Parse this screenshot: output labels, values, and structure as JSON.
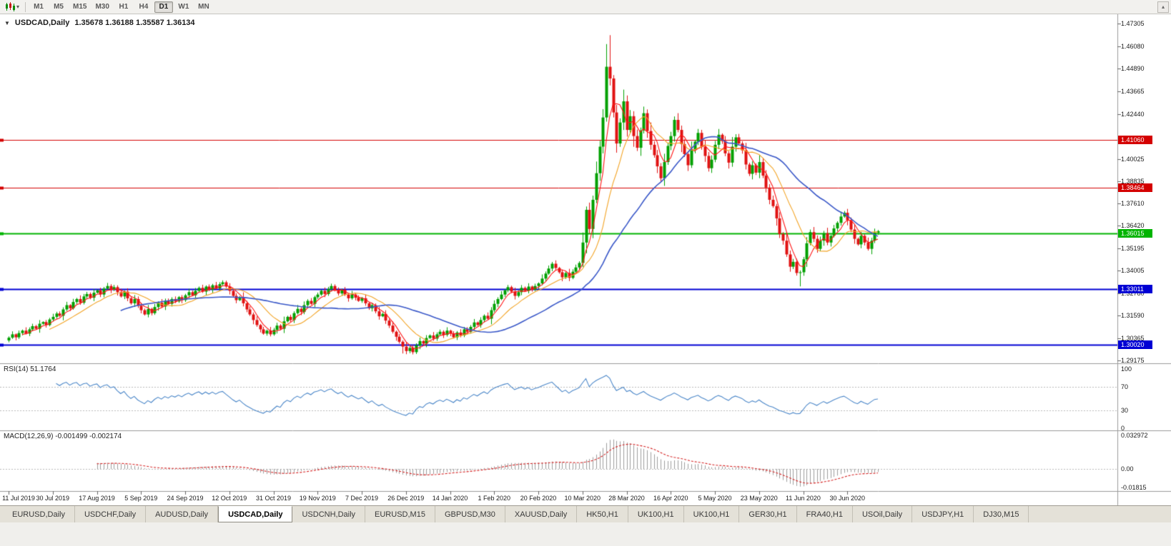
{
  "toolbar": {
    "timeframes": [
      "M1",
      "M5",
      "M15",
      "M30",
      "H1",
      "H4",
      "D1",
      "W1",
      "MN"
    ],
    "active_timeframe": "D1",
    "chart_menu_caret": "▾",
    "scroll_up_glyph": "▴"
  },
  "chart": {
    "collapse_glyph": "▼",
    "symbol_title": "USDCAD,Daily",
    "ohlc": "1.35678 1.36188 1.35587 1.36134"
  },
  "price_axis": {
    "ticks": [
      "1.47305",
      "1.46080",
      "1.44890",
      "1.43665",
      "1.42440",
      "1.40025",
      "1.38835",
      "1.37610",
      "1.36420",
      "1.35195",
      "1.34005",
      "1.32780",
      "1.31590",
      "1.30365",
      "1.29175"
    ]
  },
  "rsi": {
    "header": "RSI(14) 51.1764",
    "color": "#4a86c8",
    "levels": [
      70,
      30
    ],
    "axis_labels": [
      {
        "value": 100,
        "label": "100"
      },
      {
        "value": 70,
        "label": "70"
      },
      {
        "value": 30,
        "label": "30"
      },
      {
        "value": 0,
        "label": "0"
      }
    ]
  },
  "macd": {
    "header": "MACD(12,26,9) -0.001499 -0.002174",
    "hist_color": "#9c9c9c",
    "signal_color": "#d42020",
    "axis_labels": [
      {
        "value": 0.032972,
        "label": "0.032972"
      },
      {
        "value": 0,
        "label": "0.00"
      },
      {
        "value": -0.01815,
        "label": "-0.01815"
      }
    ]
  },
  "time_axis": {
    "labels": [
      "11 Jul 2019",
      "30 Jul 2019",
      "17 Aug 2019",
      "5 Sep 2019",
      "24 Sep 2019",
      "12 Oct 2019",
      "31 Oct 2019",
      "19 Nov 2019",
      "7 Dec 2019",
      "26 Dec 2019",
      "14 Jan 2020",
      "1 Feb 2020",
      "20 Feb 2020",
      "10 Mar 2020",
      "28 Mar 2020",
      "16 Apr 2020",
      "5 May 2020",
      "23 May 2020",
      "11 Jun 2020",
      "30 Jun 2020"
    ]
  },
  "tabs": [
    {
      "label": "EURUSD,Daily",
      "active": false
    },
    {
      "label": "USDCHF,Daily",
      "active": false
    },
    {
      "label": "AUDUSD,Daily",
      "active": false
    },
    {
      "label": "USDCAD,Daily",
      "active": true
    },
    {
      "label": "USDCNH,Daily",
      "active": false
    },
    {
      "label": "EURUSD,M15",
      "active": false
    },
    {
      "label": "GBPUSD,M30",
      "active": false
    },
    {
      "label": "XAUUSD,Daily",
      "active": false
    },
    {
      "label": "HK50,H1",
      "active": false
    },
    {
      "label": "UK100,H1",
      "active": false
    },
    {
      "label": "UK100,H1",
      "active": false
    },
    {
      "label": "GER30,H1",
      "active": false
    },
    {
      "label": "FRA40,H1",
      "active": false
    },
    {
      "label": "USOil,Daily",
      "active": false
    },
    {
      "label": "USDJPY,H1",
      "active": false
    },
    {
      "label": "DJ30,M15",
      "active": false
    }
  ],
  "chart_data": {
    "type": "candlestick",
    "symbol": "USDCAD",
    "timeframe": "Daily",
    "title": "USDCAD,Daily",
    "y_axis": {
      "min": 1.29175,
      "max": 1.47305
    },
    "bars_per_x_label": 13,
    "x_labels": [
      "11 Jul 2019",
      "30 Jul 2019",
      "17 Aug 2019",
      "5 Sep 2019",
      "24 Sep 2019",
      "12 Oct 2019",
      "31 Oct 2019",
      "19 Nov 2019",
      "7 Dec 2019",
      "26 Dec 2019",
      "14 Jan 2020",
      "1 Feb 2020",
      "20 Feb 2020",
      "10 Mar 2020",
      "28 Mar 2020",
      "16 Apr 2020",
      "5 May 2020",
      "23 May 2020",
      "11 Jun 2020",
      "30 Jun 2020"
    ],
    "first_open": 1.3025,
    "closes": [
      1.304,
      1.3058,
      1.3042,
      1.3065,
      1.3078,
      1.3062,
      1.3085,
      1.3102,
      1.3088,
      1.3115,
      1.3124,
      1.3108,
      1.3138,
      1.3152,
      1.317,
      1.3158,
      1.3192,
      1.3215,
      1.3198,
      1.3232,
      1.3248,
      1.3228,
      1.3262,
      1.3275,
      1.3255,
      1.3282,
      1.3295,
      1.3272,
      1.3304,
      1.3318,
      1.3298,
      1.3312,
      1.3285,
      1.3262,
      1.3288,
      1.3252,
      1.3225,
      1.3248,
      1.3212,
      1.3188,
      1.3165,
      1.3195,
      1.3172,
      1.3205,
      1.3228,
      1.3208,
      1.3238,
      1.3222,
      1.3248,
      1.3235,
      1.3258,
      1.3242,
      1.3268,
      1.3285,
      1.3268,
      1.3292,
      1.3308,
      1.3288,
      1.3315,
      1.3298,
      1.3322,
      1.3305,
      1.3328,
      1.3338,
      1.3315,
      1.3292,
      1.3265,
      1.3242,
      1.3258,
      1.3225,
      1.3192,
      1.3165,
      1.3135,
      1.3108,
      1.3085,
      1.3062,
      1.3078,
      1.3058,
      1.3082,
      1.3105,
      1.3088,
      1.3128,
      1.3152,
      1.3135,
      1.3172,
      1.3195,
      1.3178,
      1.3215,
      1.3238,
      1.3222,
      1.3258,
      1.3272,
      1.3292,
      1.3275,
      1.3302,
      1.3318,
      1.3295,
      1.3278,
      1.3298,
      1.3272,
      1.3252,
      1.3272,
      1.3255,
      1.3238,
      1.3252,
      1.3225,
      1.3198,
      1.3215,
      1.3182,
      1.3155,
      1.3168,
      1.3132,
      1.3105,
      1.3072,
      1.3045,
      1.3018,
      1.2992,
      1.2968,
      1.2985,
      1.2962,
      1.2998,
      1.3022,
      1.3008,
      1.3038,
      1.3052,
      1.3035,
      1.3058,
      1.3072,
      1.3055,
      1.3078,
      1.3062,
      1.3042,
      1.3068,
      1.3052,
      1.3085,
      1.3072,
      1.3098,
      1.3122,
      1.3108,
      1.3135,
      1.3158,
      1.3142,
      1.3188,
      1.3222,
      1.3248,
      1.3272,
      1.3295,
      1.3312,
      1.3288,
      1.3265,
      1.3285,
      1.3308,
      1.3292,
      1.3315,
      1.3298,
      1.3318,
      1.3332,
      1.3358,
      1.3385,
      1.3412,
      1.3438,
      1.3415,
      1.3392,
      1.3365,
      1.3388,
      1.3362,
      1.3395,
      1.3418,
      1.3442,
      1.3552,
      1.3728,
      1.3625,
      1.3782,
      1.3925,
      1.4068,
      1.4225,
      1.4498,
      1.4435,
      1.4252,
      1.4085,
      1.4198,
      1.4312,
      1.4158,
      1.4232,
      1.4125,
      1.4062,
      1.4155,
      1.4248,
      1.4152,
      1.4078,
      1.4022,
      1.3962,
      1.3898,
      1.3985,
      1.4072,
      1.4125,
      1.4212,
      1.4158,
      1.4082,
      1.4028,
      1.3968,
      1.4052,
      1.4095,
      1.4142,
      1.4068,
      1.4018,
      1.3952,
      1.3998,
      1.4078,
      1.4132,
      1.4098,
      1.4032,
      1.3982,
      1.4068,
      1.4118,
      1.4085,
      1.4048,
      1.3972,
      1.3922,
      1.3968,
      1.3928,
      1.3985,
      1.3912,
      1.3848,
      1.3782,
      1.3748,
      1.3682,
      1.3598,
      1.3562,
      1.3488,
      1.3422,
      1.3448,
      1.3388,
      1.3392,
      1.3462,
      1.3548,
      1.3608,
      1.3572,
      1.3518,
      1.3562,
      1.3602,
      1.3552,
      1.3588,
      1.3628,
      1.3658,
      1.3692,
      1.3712,
      1.3672,
      1.3622,
      1.3572,
      1.3542,
      1.3588,
      1.3552,
      1.3518,
      1.3562,
      1.3605,
      1.36134
    ],
    "wick_up_pattern": [
      0.6,
      1.2,
      0.4,
      0.9,
      0.5,
      1.4,
      0.7,
      1.0
    ],
    "wick_down_pattern": [
      0.8,
      0.5,
      1.3,
      0.6,
      1.1,
      0.4,
      0.9
    ],
    "wick_overrides": {
      "116": {
        "low": 1.2955
      },
      "117": {
        "low": 1.2951
      },
      "176": {
        "high": 1.462
      },
      "177": {
        "high": 1.4668
      },
      "233": {
        "low": 1.3316
      }
    },
    "candle_up_color": "#00a000",
    "candle_down_color": "#e01212",
    "moving_averages": [
      {
        "period": 5,
        "color": "#ff1414"
      },
      {
        "period": 13,
        "color": "#f2a324"
      },
      {
        "period": 34,
        "color": "#3a58c8"
      }
    ],
    "hlines": [
      {
        "value": 1.4106,
        "label": "1.41060",
        "color": "#d40000",
        "thickness": 1
      },
      {
        "value": 1.38464,
        "label": "1.38464",
        "color": "#d40000",
        "thickness": 1
      },
      {
        "value": 1.36015,
        "label": "1.36015",
        "color": "#00b400",
        "thickness": 2
      },
      {
        "value": 1.33011,
        "label": "1.33011",
        "color": "#0000d4",
        "thickness": 2
      },
      {
        "value": 1.3002,
        "label": "1.30020",
        "color": "#0000d4",
        "thickness": 2
      }
    ],
    "indicators": [
      {
        "name": "RSI",
        "params": "14",
        "display_value": "51.1764"
      },
      {
        "name": "MACD",
        "params": "12,26,9",
        "display_values": "-0.001499 -0.002174"
      }
    ]
  }
}
